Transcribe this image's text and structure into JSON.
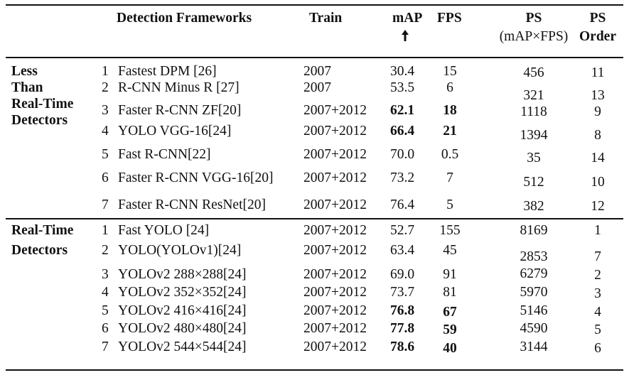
{
  "table": {
    "headers": {
      "framework": "Detection Frameworks",
      "train": "Train",
      "map": "mAP",
      "fps": "FPS",
      "ps_line1": "PS",
      "ps_line2": "(mAP×FPS)",
      "order_line1": "PS",
      "order_line2": "Order"
    },
    "groups": [
      {
        "label_lines": [
          "Less",
          "Than",
          "Real-Time",
          "Detectors"
        ],
        "rows": [
          {
            "num": "1",
            "name": "Fastest DPM [26]",
            "train": "2007",
            "map": "30.4",
            "fps": "15",
            "ps": "456",
            "order": "11",
            "map_bold": false,
            "fps_bold": false
          },
          {
            "num": "2",
            "name": "R-CNN Minus R [27]",
            "train": "2007",
            "map": "53.5",
            "fps": "6",
            "ps": "321",
            "order": "13",
            "map_bold": false,
            "fps_bold": false
          },
          {
            "num": "3",
            "name": "Faster R-CNN ZF[20]",
            "train": "2007+2012",
            "map": "62.1",
            "fps": "18",
            "ps": "1118",
            "order": "9",
            "map_bold": true,
            "fps_bold": true
          },
          {
            "num": "4",
            "name": "YOLO VGG-16[24]",
            "train": "2007+2012",
            "map": "66.4",
            "fps": "21",
            "ps": "1394",
            "order": "8",
            "map_bold": true,
            "fps_bold": true
          },
          {
            "num": "5",
            "name": "Fast R-CNN[22]",
            "train": "2007+2012",
            "map": "70.0",
            "fps": "0.5",
            "ps": "35",
            "order": "14",
            "map_bold": false,
            "fps_bold": false
          },
          {
            "num": "6",
            "name": "Faster R-CNN VGG-16[20]",
            "train": "2007+2012",
            "map": "73.2",
            "fps": "7",
            "ps": "512",
            "order": "10",
            "map_bold": false,
            "fps_bold": false
          },
          {
            "num": "7",
            "name": "Faster R-CNN ResNet[20]",
            "train": "2007+2012",
            "map": "76.4",
            "fps": "5",
            "ps": "382",
            "order": "12",
            "map_bold": false,
            "fps_bold": false
          }
        ]
      },
      {
        "label_lines": [
          "Real-Time",
          "Detectors"
        ],
        "rows": [
          {
            "num": "1",
            "name": "Fast YOLO [24]",
            "train": "2007+2012",
            "map": "52.7",
            "fps": "155",
            "ps": "8169",
            "order": "1",
            "map_bold": false,
            "fps_bold": false
          },
          {
            "num": "2",
            "name": "YOLO(YOLOv1)[24]",
            "train": "2007+2012",
            "map": "63.4",
            "fps": "45",
            "ps": "2853",
            "order": "7",
            "map_bold": false,
            "fps_bold": false
          },
          {
            "num": "3",
            "name": "YOLOv2 288×288[24]",
            "train": "2007+2012",
            "map": "69.0",
            "fps": "91",
            "ps": "6279",
            "order": "2",
            "map_bold": false,
            "fps_bold": false
          },
          {
            "num": "4",
            "name": "YOLOv2 352×352[24]",
            "train": "2007+2012",
            "map": "73.7",
            "fps": "81",
            "ps": "5970",
            "order": "3",
            "map_bold": false,
            "fps_bold": false
          },
          {
            "num": "5",
            "name": "YOLOv2 416×416[24]",
            "train": "2007+2012",
            "map": "76.8",
            "fps": "67",
            "ps": "5146",
            "order": "4",
            "map_bold": true,
            "fps_bold": true
          },
          {
            "num": "6",
            "name": "YOLOv2 480×480[24]",
            "train": "2007+2012",
            "map": "77.8",
            "fps": "59",
            "ps": "4590",
            "order": "5",
            "map_bold": true,
            "fps_bold": true
          },
          {
            "num": "7",
            "name": "YOLOv2 544×544[24]",
            "train": "2007+2012",
            "map": "78.6",
            "fps": "40",
            "ps": "3144",
            "order": "6",
            "map_bold": true,
            "fps_bold": true
          }
        ]
      }
    ]
  },
  "icons": {
    "map_arrow": "arrow-up-icon"
  }
}
